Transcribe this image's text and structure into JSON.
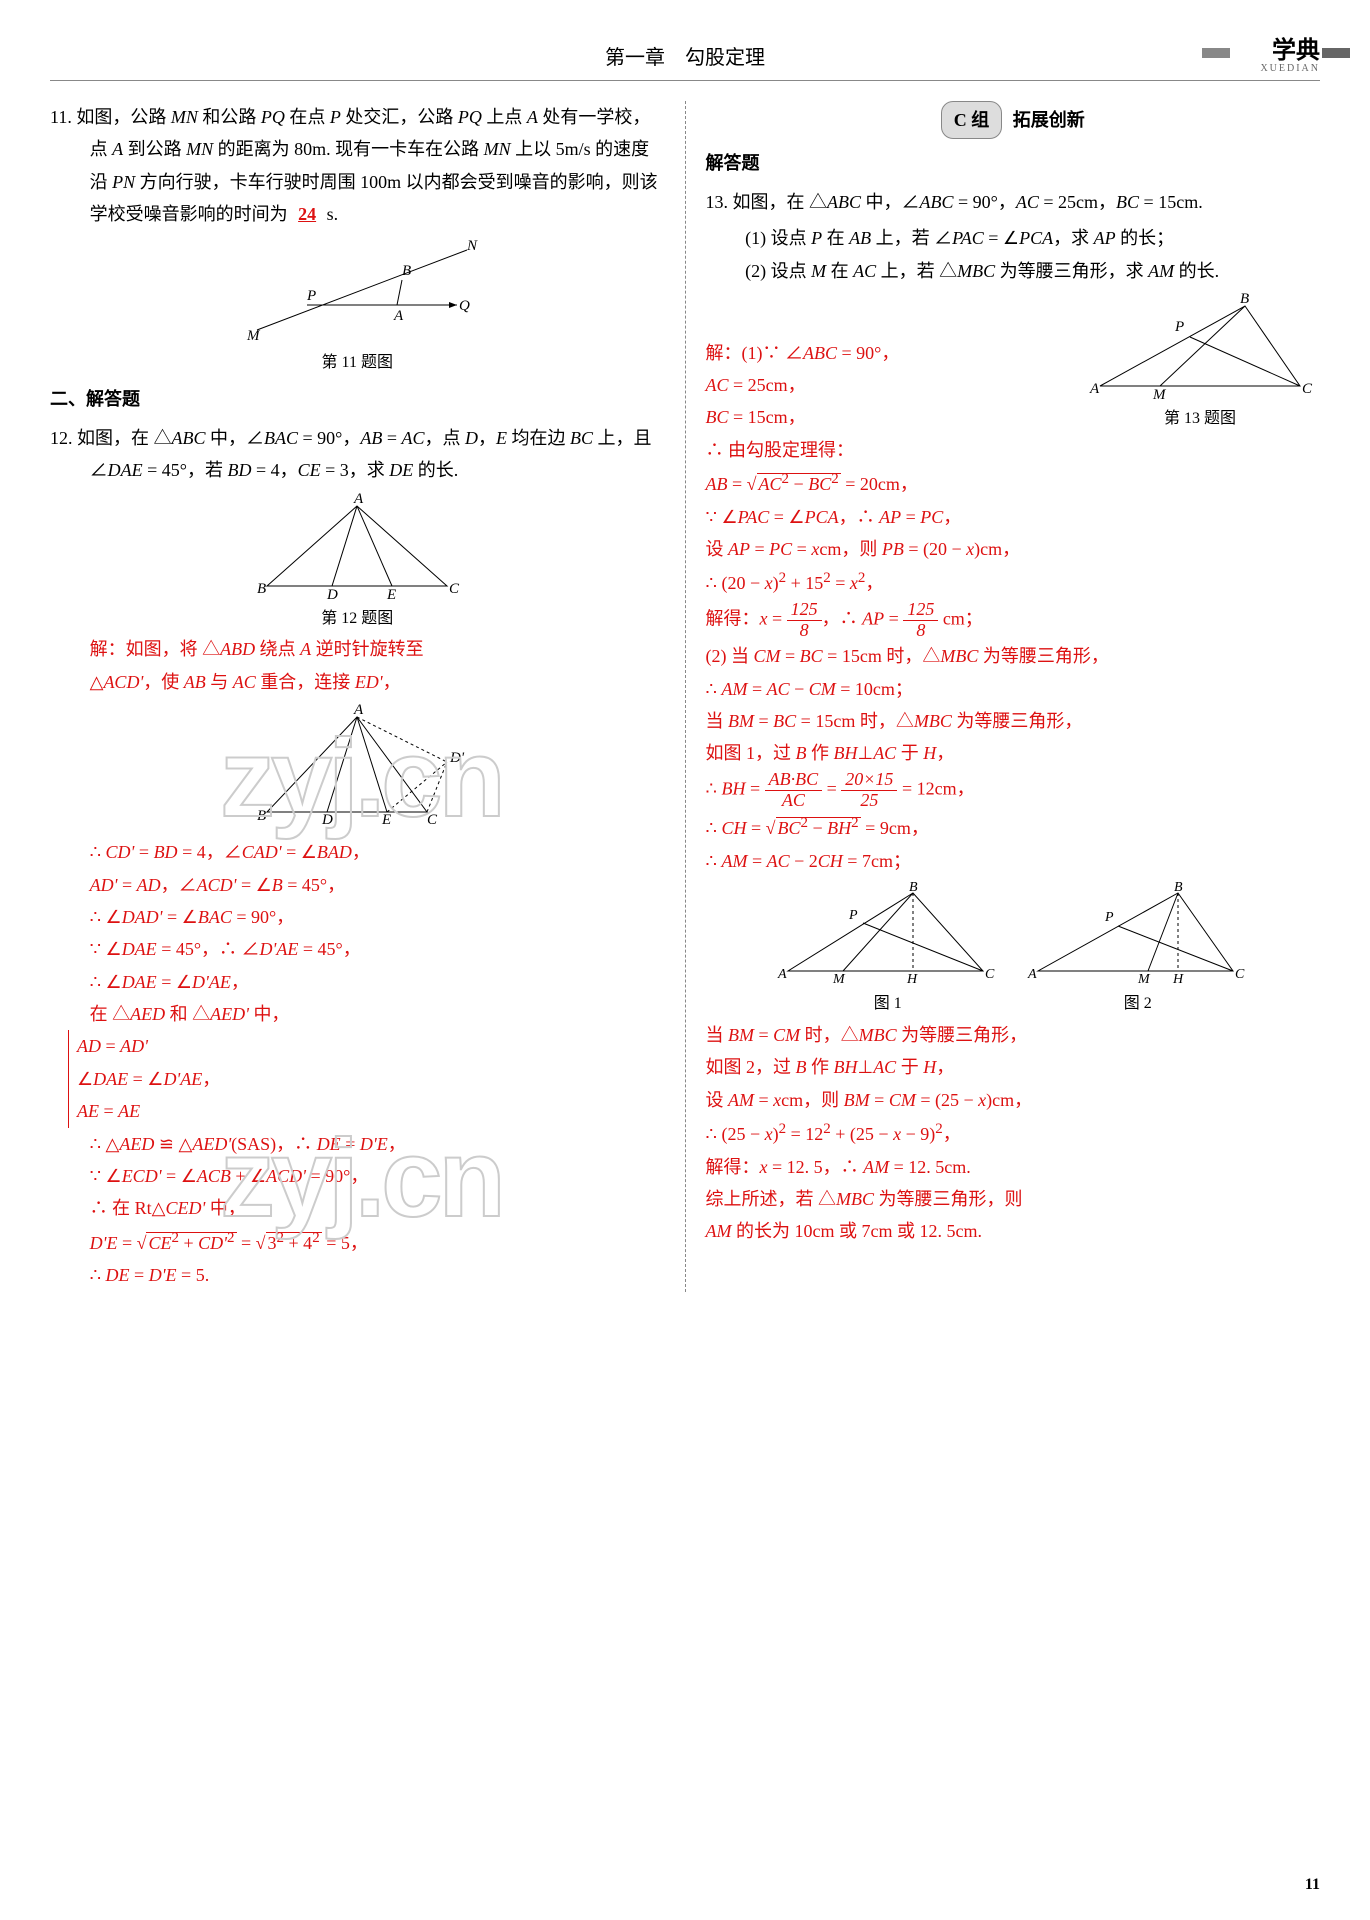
{
  "header": {
    "chapter": "第一章　勾股定理",
    "brand": "学典",
    "brand_sub": "XUEDIAN"
  },
  "page_num": "11",
  "watermark": "zyj.cn",
  "left": {
    "q11": {
      "num": "11.",
      "text": "如图，公路 <span class='italic'>MN</span> 和公路 <span class='italic'>PQ</span> 在点 <span class='italic'>P</span> 处交汇，公路 <span class='italic'>PQ</span> 上点 <span class='italic'>A</span> 处有一学校，点 <span class='italic'>A</span> 到公路 <span class='italic'>MN</span> 的距离为 80m. 现有一卡车在公路 <span class='italic'>MN</span> 上以 5m/s 的速度沿 <span class='italic'>PN</span> 方向行驶，卡车行驶时周围 100m 以内都会受到噪音的影响，则该学校受噪音影响的时间为",
      "blank": "24",
      "unit": "s.",
      "cap": "第 11 题图"
    },
    "sec2": "二、解答题",
    "q12": {
      "num": "12.",
      "text": "如图，在 △<span class='italic'>ABC</span> 中，∠<span class='italic'>BAC</span> = 90°，<span class='italic'>AB</span> = <span class='italic'>AC</span>，点 <span class='italic'>D</span>，<span class='italic'>E</span> 均在边 <span class='italic'>BC</span> 上，且 ∠<span class='italic'>DAE</span> = 45°，若 <span class='italic'>BD</span> = 4，<span class='italic'>CE</span> = 3，求 <span class='italic'>DE</span> 的长.",
      "cap": "第 12 题图",
      "sol": [
        "解：如图，将 △<span class='italic'>ABD</span> 绕点 <span class='italic'>A</span> 逆时针旋转至",
        "△<span class='italic'>ACD'</span>，使 <span class='italic'>AB</span> 与 <span class='italic'>AC</span> 重合，连接 <span class='italic'>ED'</span>，",
        "∴ <span class='italic'>CD'</span> = <span class='italic'>BD</span> = 4，∠<span class='italic'>CAD'</span> = ∠<span class='italic'>BAD</span>，",
        "<span class='italic'>AD'</span> = <span class='italic'>AD</span>，∠<span class='italic'>ACD'</span> = ∠<span class='italic'>B</span> = 45°，",
        "∴ ∠<span class='italic'>DAD'</span> = ∠<span class='italic'>BAC</span> = 90°，",
        "∵ ∠<span class='italic'>DAE</span> = 45°，∴ ∠<span class='italic'>D'AE</span> = 45°，",
        "∴ ∠<span class='italic'>DAE</span> = ∠<span class='italic'>D'AE</span>，",
        "在 △<span class='italic'>AED</span> 和 △<span class='italic'>AED'</span> 中，",
        "∴ △<span class='italic'>AED</span> ≌ △<span class='italic'>AED'</span>(SAS)，∴ <span class='italic'>DE</span> = <span class='italic'>D'E</span>，",
        "∵ ∠<span class='italic'>ECD'</span> = ∠<span class='italic'>ACB</span> + ∠<span class='italic'>ACD'</span> = 90°，",
        "∴ 在 Rt△<span class='italic'>CED'</span> 中，",
        "<span class='italic'>D'E</span> = √<span class='sqrt'><span class='italic'>CE</span><sup>2</sup> + <span class='italic'>CD'</span><sup>2</sup></span> = √<span class='sqrt'>3<sup>2</sup> + 4<sup>2</sup></span> = 5，",
        "∴ <span class='italic'>DE</span> = <span class='italic'>D'E</span> = 5."
      ],
      "brace": [
        "<span class='italic'>AD</span> = <span class='italic'>AD'</span>",
        "∠<span class='italic'>DAE</span> = ∠<span class='italic'>D'AE</span>，",
        "<span class='italic'>AE</span> = <span class='italic'>AE</span>"
      ]
    }
  },
  "right": {
    "group": {
      "badge": "C 组",
      "title": "拓展创新"
    },
    "sec": "解答题",
    "q13": {
      "num": "13.",
      "text": "如图，在 △<span class='italic'>ABC</span> 中，∠<span class='italic'>ABC</span> = 90°，<span class='italic'>AC</span> = 25cm，<span class='italic'>BC</span> = 15cm.",
      "p1": "(1) 设点 <span class='italic'>P</span> 在 <span class='italic'>AB</span> 上，若 ∠<span class='italic'>PAC</span> = ∠<span class='italic'>PCA</span>，求 <span class='italic'>AP</span> 的长；",
      "p2": "(2) 设点 <span class='italic'>M</span> 在 <span class='italic'>AC</span> 上，若 △<span class='italic'>MBC</span> 为等腰三角形，求 <span class='italic'>AM</span> 的长.",
      "cap": "第 13 题图",
      "cap1": "图 1",
      "cap2": "图 2",
      "sol1": [
        "解：(1)∵ ∠<span class='italic'>ABC</span> = 90°，",
        "<span class='italic'>AC</span> = 25cm，",
        "<span class='italic'>BC</span> = 15cm，",
        "∴ 由勾股定理得：",
        "<span class='italic'>AB</span> = √<span class='sqrt'><span class='italic'>AC</span><sup>2</sup> − <span class='italic'>BC</span><sup>2</sup></span> = 20cm，",
        "∵ ∠<span class='italic'>PAC</span> = ∠<span class='italic'>PCA</span>，∴ <span class='italic'>AP</span> = <span class='italic'>PC</span>，",
        "设 <span class='italic'>AP</span> = <span class='italic'>PC</span> = <span class='italic'>x</span>cm，则 <span class='italic'>PB</span> = (20 − <span class='italic'>x</span>)cm，",
        "∴ (20 − <span class='italic'>x</span>)<sup>2</sup> + 15<sup>2</sup> = <span class='italic'>x</span><sup>2</sup>，",
        "解得：<span class='italic'>x</span> = <span class='frac'><span class='n'>125</span><span class='d'>8</span></span>，∴ <span class='italic'>AP</span> = <span class='frac'><span class='n'>125</span><span class='d'>8</span></span> cm；"
      ],
      "sol2": [
        "(2) 当 <span class='italic'>CM</span> = <span class='italic'>BC</span> = 15cm 时，△<span class='italic'>MBC</span> 为等腰三角形，",
        "∴ <span class='italic'>AM</span> = <span class='italic'>AC</span> − <span class='italic'>CM</span> = 10cm；",
        "当 <span class='italic'>BM</span> = <span class='italic'>BC</span> = 15cm 时，△<span class='italic'>MBC</span> 为等腰三角形，",
        "如图 1，过 <span class='italic'>B</span> 作 <span class='italic'>BH</span>⊥<span class='italic'>AC</span> 于 <span class='italic'>H</span>，",
        "∴ <span class='italic'>BH</span> = <span class='frac'><span class='n'><span class='italic'>AB</span>·<span class='italic'>BC</span></span><span class='d'><span class='italic'>AC</span></span></span> = <span class='frac'><span class='n'>20×15</span><span class='d'>25</span></span> = 12cm，",
        "∴ <span class='italic'>CH</span> = √<span class='sqrt'><span class='italic'>BC</span><sup>2</sup> − <span class='italic'>BH</span><sup>2</sup></span> = 9cm，",
        "∴ <span class='italic'>AM</span> = <span class='italic'>AC</span> − 2<span class='italic'>CH</span> = 7cm；"
      ],
      "sol3": [
        "当 <span class='italic'>BM</span> = <span class='italic'>CM</span> 时，△<span class='italic'>MBC</span> 为等腰三角形，",
        "如图 2，过 <span class='italic'>B</span> 作 <span class='italic'>BH</span>⊥<span class='italic'>AC</span> 于 <span class='italic'>H</span>，",
        "设 <span class='italic'>AM</span> = <span class='italic'>x</span>cm，则 <span class='italic'>BM</span> = <span class='italic'>CM</span> = (25 − <span class='italic'>x</span>)cm，",
        "∴ (25 − <span class='italic'>x</span>)<sup>2</sup> = 12<sup>2</sup> + (25 − <span class='italic'>x</span> − 9)<sup>2</sup>，",
        "解得：<span class='italic'>x</span> = 12. 5，∴ <span class='italic'>AM</span> = 12. 5cm.",
        "综上所述，若 △<span class='italic'>MBC</span> 为等腰三角形，则",
        "<span class='italic'>AM</span> 的长为 10cm 或 7cm 或 12. 5cm."
      ]
    }
  }
}
